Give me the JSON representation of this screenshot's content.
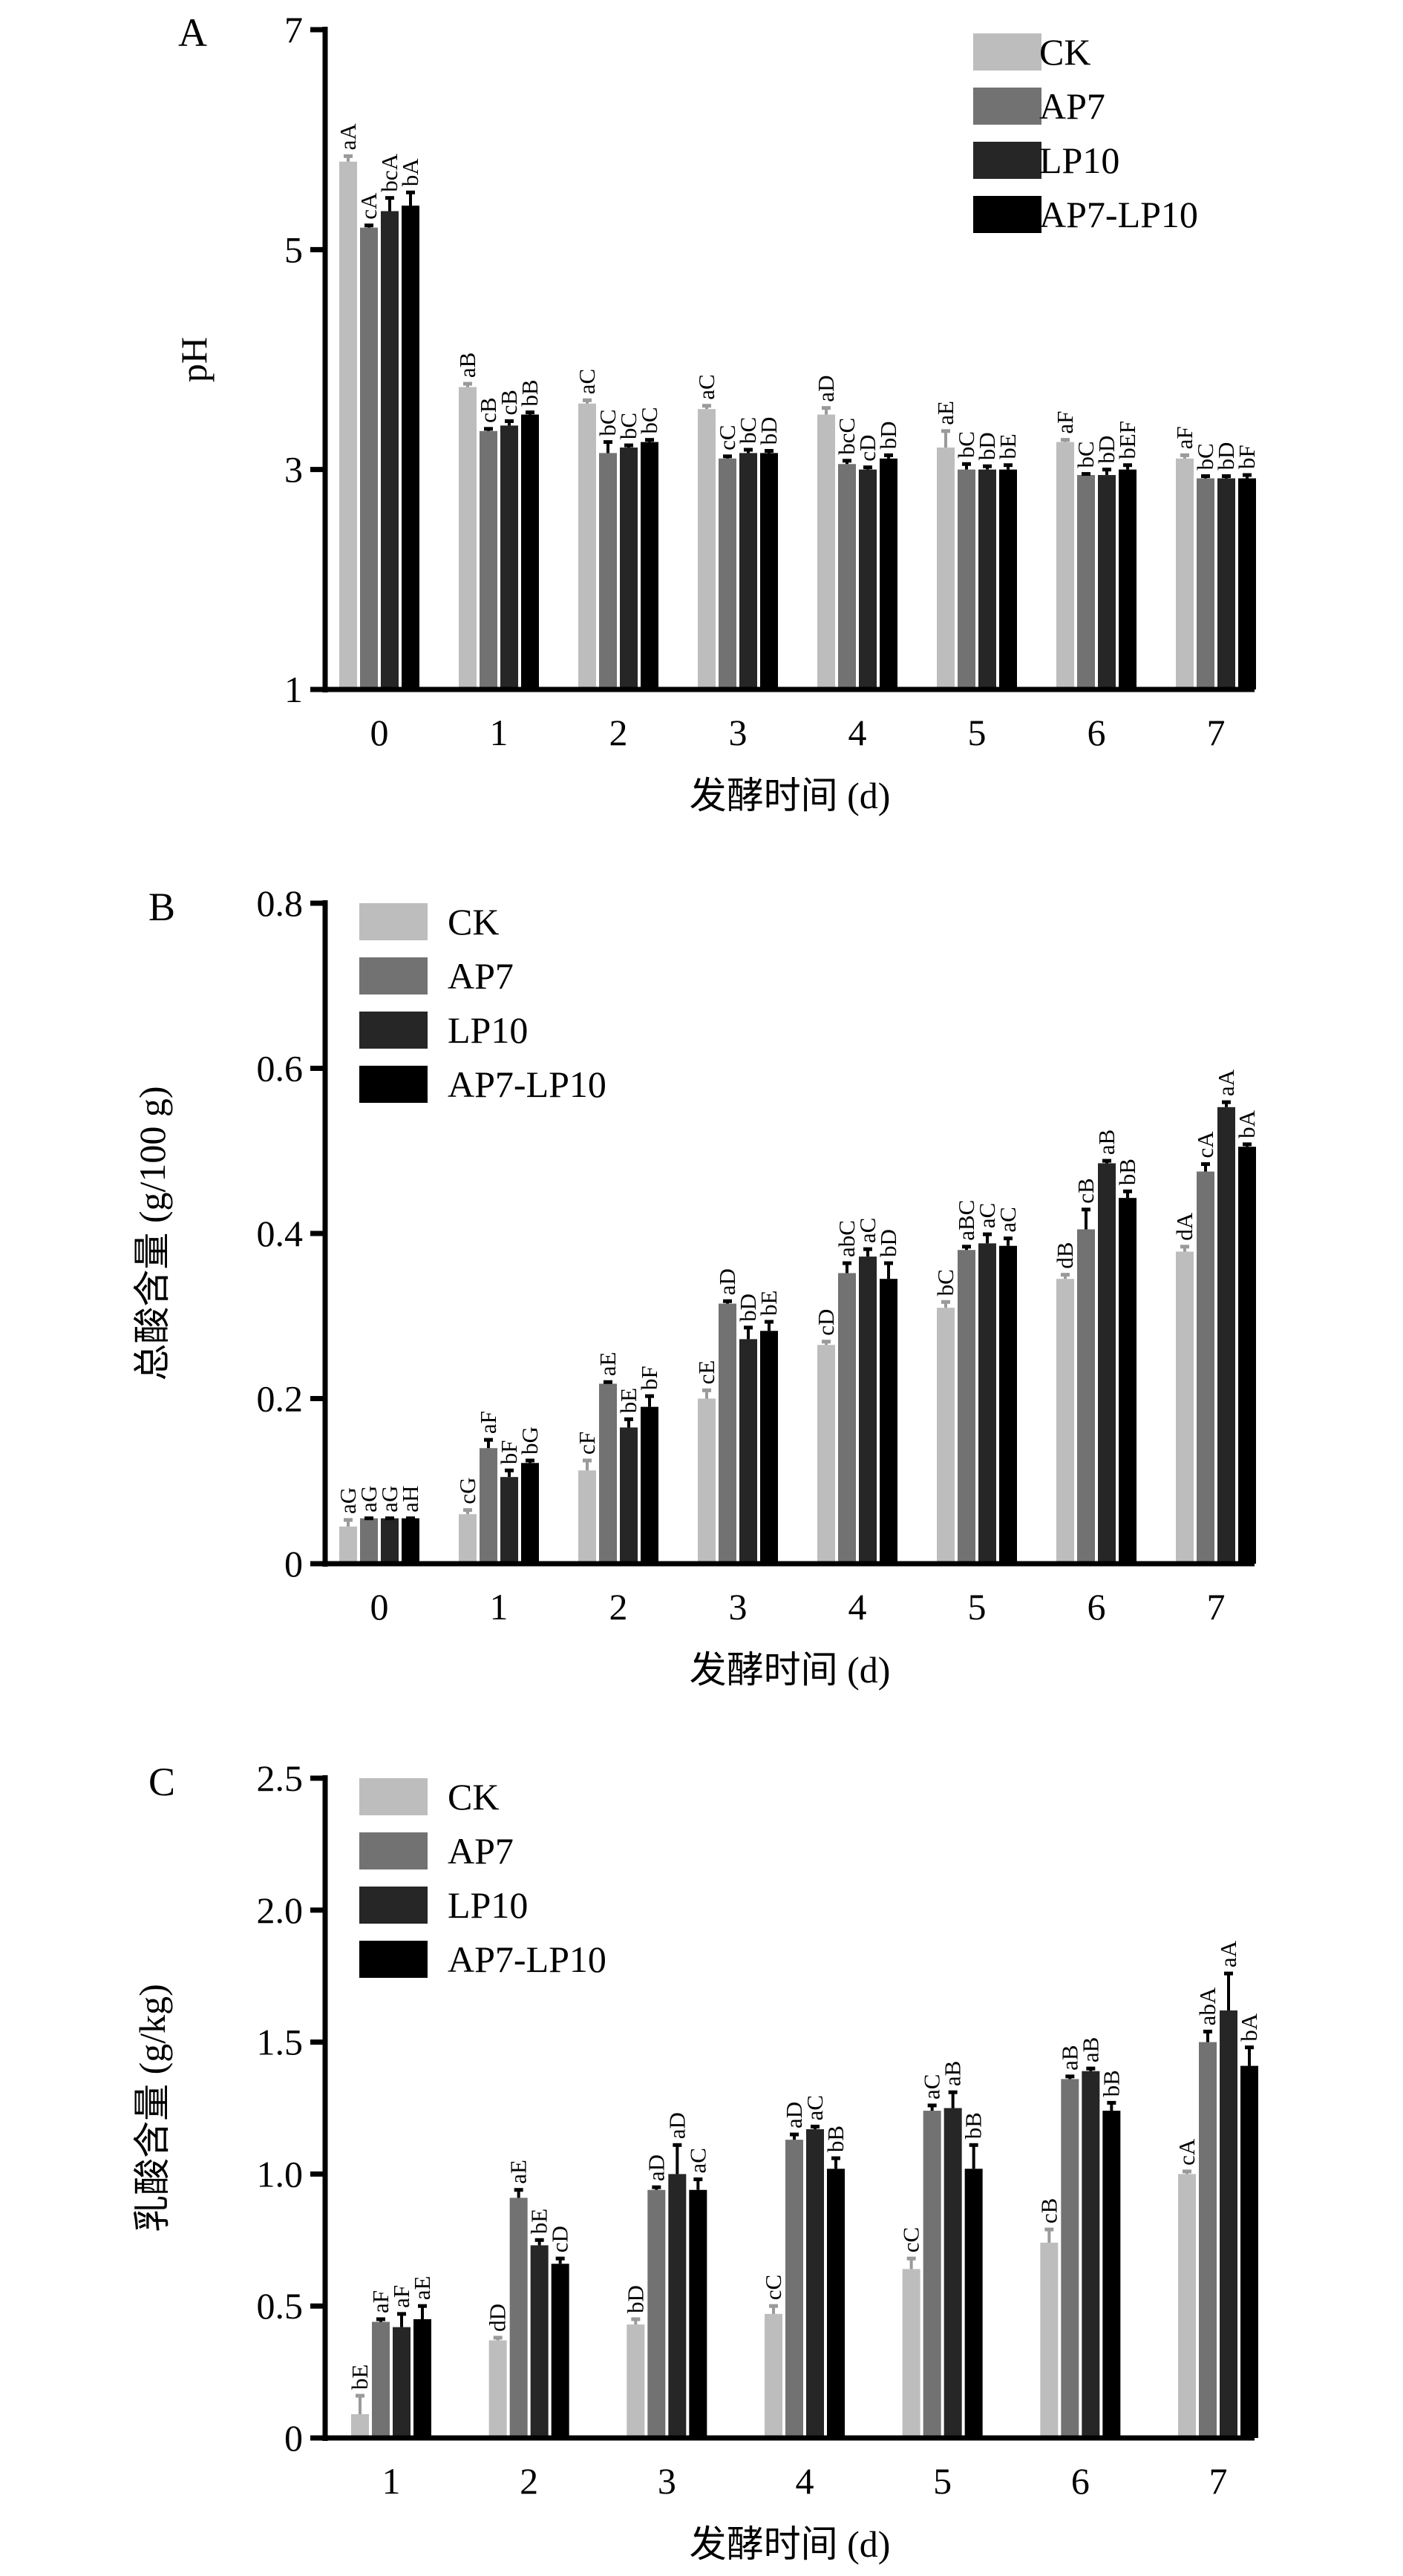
{
  "colors": {
    "CK": "#bdbdbd",
    "AP7": "#727272",
    "LP10": "#262626",
    "AP7-LP10": "#000000"
  },
  "legend": [
    "CK",
    "AP7",
    "LP10",
    "AP7-LP10"
  ],
  "chart_data": [
    {
      "type": "bar",
      "panel": "A",
      "title": "",
      "xlabel": "发酵时间 (d)",
      "ylabel": "pH",
      "ylim": [
        1,
        7
      ],
      "yticks": [
        "1",
        "3",
        "5",
        "7"
      ],
      "categories": [
        "0",
        "1",
        "2",
        "3",
        "4",
        "5",
        "6",
        "7"
      ],
      "legend_position": "top-right",
      "series": [
        {
          "name": "CK",
          "values": [
            5.8,
            3.75,
            3.6,
            3.55,
            3.5,
            3.2,
            3.25,
            3.1
          ],
          "errors": [
            0.05,
            0.03,
            0.03,
            0.03,
            0.06,
            0.15,
            0.02,
            0.03
          ],
          "labels": [
            "aA",
            "aB",
            "aC",
            "aC",
            "aD",
            "aE",
            "aF",
            "aF"
          ]
        },
        {
          "name": "AP7",
          "values": [
            5.2,
            3.35,
            3.15,
            3.1,
            3.05,
            3.0,
            2.95,
            2.92
          ],
          "errors": [
            0.02,
            0.02,
            0.1,
            0.02,
            0.03,
            0.05,
            0.01,
            0.02
          ],
          "labels": [
            "cA",
            "cB",
            "bC",
            "cC",
            "bcC",
            "bC",
            "bC",
            "bC"
          ]
        },
        {
          "name": "LP10",
          "values": [
            5.35,
            3.4,
            3.2,
            3.15,
            3.0,
            3.0,
            2.95,
            2.92
          ],
          "errors": [
            0.12,
            0.04,
            0.02,
            0.03,
            0.02,
            0.03,
            0.05,
            0.02
          ],
          "labels": [
            "bcA",
            "cB",
            "bC",
            "bC",
            "cD",
            "bD",
            "bD",
            "bD"
          ]
        },
        {
          "name": "AP7-LP10",
          "values": [
            5.4,
            3.5,
            3.25,
            3.15,
            3.1,
            3.0,
            3.0,
            2.92
          ],
          "errors": [
            0.12,
            0.02,
            0.02,
            0.02,
            0.03,
            0.04,
            0.04,
            0.03
          ],
          "labels": [
            "bA",
            "bB",
            "bC",
            "bD",
            "bD",
            "bE",
            "bEF",
            "bF"
          ]
        }
      ]
    },
    {
      "type": "bar",
      "panel": "B",
      "title": "",
      "xlabel": "发酵时间 (d)",
      "ylabel": "总酸含量 (g/100 g)",
      "ylim": [
        0,
        0.8
      ],
      "yticks": [
        "0",
        "0.2",
        "0.4",
        "0.6",
        "0.8"
      ],
      "categories": [
        "0",
        "1",
        "2",
        "3",
        "4",
        "5",
        "6",
        "7"
      ],
      "legend_position": "top-left",
      "series": [
        {
          "name": "CK",
          "values": [
            0.045,
            0.06,
            0.113,
            0.2,
            0.265,
            0.31,
            0.345,
            0.378
          ],
          "errors": [
            0.008,
            0.005,
            0.012,
            0.01,
            0.004,
            0.007,
            0.005,
            0.006
          ],
          "labels": [
            "aG",
            "cG",
            "cF",
            "cE",
            "cD",
            "bC",
            "dB",
            "dA"
          ]
        },
        {
          "name": "AP7",
          "values": [
            0.055,
            0.14,
            0.218,
            0.315,
            0.352,
            0.38,
            0.405,
            0.475
          ],
          "errors": [
            0,
            0.01,
            0.002,
            0.003,
            0.012,
            0.004,
            0.024,
            0.009
          ],
          "labels": [
            "aG",
            "aF",
            "aE",
            "aD",
            "abC",
            "aBC",
            "cB",
            "cA"
          ]
        },
        {
          "name": "LP10",
          "values": [
            0.055,
            0.105,
            0.165,
            0.272,
            0.372,
            0.388,
            0.485,
            0.553
          ],
          "errors": [
            0,
            0.008,
            0.01,
            0.014,
            0.009,
            0.011,
            0.003,
            0.006
          ],
          "labels": [
            "aG",
            "bF",
            "bE",
            "bD",
            "aC",
            "aC",
            "aB",
            "aA"
          ]
        },
        {
          "name": "AP7-LP10",
          "values": [
            0.055,
            0.122,
            0.19,
            0.282,
            0.345,
            0.385,
            0.443,
            0.505
          ],
          "errors": [
            0,
            0.003,
            0.013,
            0.011,
            0.019,
            0.009,
            0.008,
            0.003
          ],
          "labels": [
            "aH",
            "bG",
            "bF",
            "bE",
            "bD",
            "aC",
            "bB",
            "bA"
          ]
        }
      ]
    },
    {
      "type": "bar",
      "panel": "C",
      "title": "",
      "xlabel": "发酵时间 (d)",
      "ylabel": "乳酸含量 (g/kg)",
      "ylim": [
        0,
        2.5
      ],
      "yticks": [
        "0",
        "0.5",
        "1.0",
        "1.5",
        "2.0",
        "2.5"
      ],
      "categories": [
        "1",
        "2",
        "3",
        "4",
        "5",
        "6",
        "7"
      ],
      "legend_position": "top-left",
      "series": [
        {
          "name": "CK",
          "values": [
            0.09,
            0.37,
            0.43,
            0.47,
            0.64,
            0.74,
            1.0
          ],
          "errors": [
            0.07,
            0.01,
            0.02,
            0.03,
            0.04,
            0.05,
            0.01
          ],
          "labels": [
            "bE",
            "dD",
            "bD",
            "cC",
            "cC",
            "cB",
            "cA"
          ]
        },
        {
          "name": "AP7",
          "values": [
            0.44,
            0.91,
            0.94,
            1.13,
            1.24,
            1.36,
            1.5
          ],
          "errors": [
            0.01,
            0.03,
            0.01,
            0.02,
            0.02,
            0.01,
            0.04
          ],
          "labels": [
            "aF",
            "aE",
            "aD",
            "aD",
            "aC",
            "aB",
            "abA"
          ]
        },
        {
          "name": "LP10",
          "values": [
            0.42,
            0.73,
            1.0,
            1.17,
            1.25,
            1.39,
            1.62
          ],
          "errors": [
            0.05,
            0.02,
            0.11,
            0.01,
            0.06,
            0.01,
            0.14
          ],
          "labels": [
            "aF",
            "bE",
            "aD",
            "aC",
            "aB",
            "aB",
            "aA"
          ]
        },
        {
          "name": "AP7-LP10",
          "values": [
            0.45,
            0.66,
            0.94,
            1.02,
            1.02,
            1.24,
            1.41
          ],
          "errors": [
            0.05,
            0.02,
            0.04,
            0.04,
            0.09,
            0.03,
            0.07
          ],
          "labels": [
            "aE",
            "cD",
            "aC",
            "bB",
            "bB",
            "bB",
            "bA"
          ]
        }
      ]
    }
  ]
}
